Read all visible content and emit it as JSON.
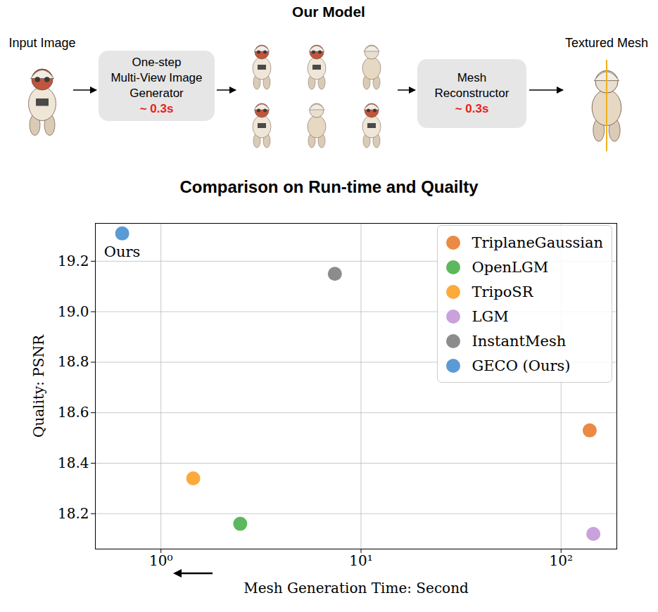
{
  "header": {
    "title": "Our Model"
  },
  "diagram": {
    "nodes": [
      {
        "label": "Input Image"
      },
      {
        "label": "One-step Multi-View Image Generator",
        "time": "~ 0.3s"
      },
      {
        "label": "Mesh Reconstructor",
        "time": "~ 0.3s"
      },
      {
        "label": "Textured Mesh"
      }
    ]
  },
  "chart_data": {
    "type": "scatter",
    "title": "Comparison on Run-time and Quailty",
    "xlabel": "Mesh Generation Time: Second",
    "ylabel": "Quality: PSNR",
    "log": "x",
    "grid": true,
    "legend": "upper right",
    "xlim": [
      0.47,
      190
    ],
    "xticks": [
      {
        "value": 1,
        "label": "10⁰"
      },
      {
        "value": 10,
        "label": "10¹"
      },
      {
        "value": 100,
        "label": "10²"
      }
    ],
    "ylim": [
      18.06,
      19.35
    ],
    "yticks": [
      18.2,
      18.4,
      18.6,
      18.8,
      {
        "value": 19,
        "label": "19.0"
      },
      19.2
    ],
    "series": [
      {
        "name": "TriplaneGaussian",
        "color": "#ea8a45",
        "x": [
          139
        ],
        "values": [
          18.53
        ]
      },
      {
        "name": "OpenLGM",
        "color": "#5cb85c",
        "x": [
          2.49
        ],
        "values": [
          18.16
        ]
      },
      {
        "name": "TripoSR",
        "color": "#fcaa3b",
        "x": [
          1.45
        ],
        "values": [
          18.34
        ]
      },
      {
        "name": "LGM",
        "color": "#c9a2dc",
        "x": [
          145
        ],
        "values": [
          18.12
        ]
      },
      {
        "name": "InstantMesh",
        "color": "#8c8c8c",
        "x": [
          7.4
        ],
        "values": [
          19.15
        ]
      },
      {
        "name": "GECO (Ours)",
        "color": "#5b9bd5",
        "x": [
          0.64
        ],
        "values": [
          19.31
        ]
      }
    ],
    "annotations": [
      {
        "text": "Ours",
        "series": "GECO (Ours)"
      }
    ]
  }
}
